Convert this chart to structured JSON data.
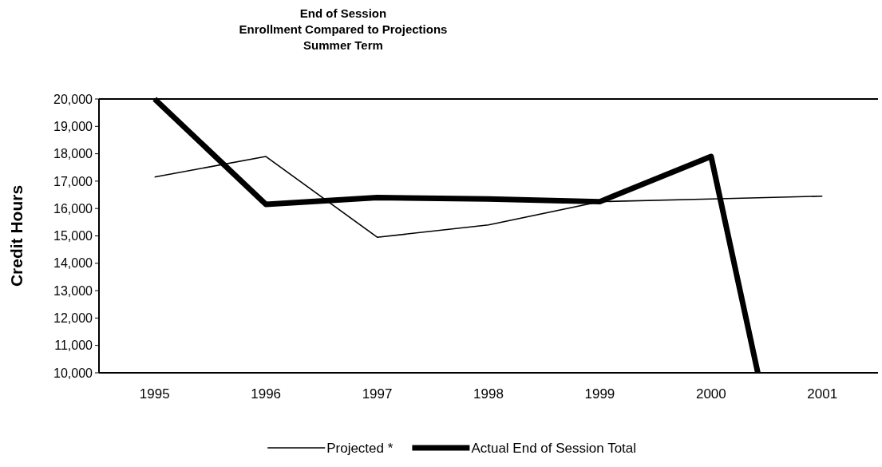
{
  "chart_data": {
    "type": "line",
    "title": "End of Session\nEnrollment Compared to Projections\nSummer Term",
    "ylabel": "Credit Hours",
    "xlim": [
      1994.5,
      2001.5
    ],
    "xticks": [
      1995,
      1996,
      1997,
      1998,
      1999,
      2000,
      2001
    ],
    "ylim": [
      10000,
      20000
    ],
    "yticks": [
      {
        "value": 10000,
        "label": "10,000"
      },
      {
        "value": 11000,
        "label": "11,000"
      },
      {
        "value": 12000,
        "label": "12,000"
      },
      {
        "value": 13000,
        "label": "13,000"
      },
      {
        "value": 14000,
        "label": "14,000"
      },
      {
        "value": 15000,
        "label": "15,000"
      },
      {
        "value": 16000,
        "label": "16,000"
      },
      {
        "value": 17000,
        "label": "17,000"
      },
      {
        "value": 18000,
        "label": "18,000"
      },
      {
        "value": 19000,
        "label": "19,000"
      },
      {
        "value": 20000,
        "label": "20,000"
      }
    ],
    "grid": false,
    "legend": "bottom",
    "marker": "none",
    "line_style": "solid",
    "series": [
      {
        "name": "Projected *",
        "color": "#000000",
        "x": [
          1995,
          1996,
          1997,
          1998,
          1999,
          2000,
          2001
        ],
        "values": [
          17150,
          17900,
          14950,
          15400,
          16250,
          16350,
          16450
        ]
      },
      {
        "name": "Actual End of Session Total",
        "color": "#000000",
        "x": [
          1995,
          1996,
          1997,
          1998,
          1999,
          2000,
          2000.42
        ],
        "values": [
          20000,
          16150,
          16400,
          16350,
          16250,
          17900,
          10000
        ]
      }
    ]
  }
}
